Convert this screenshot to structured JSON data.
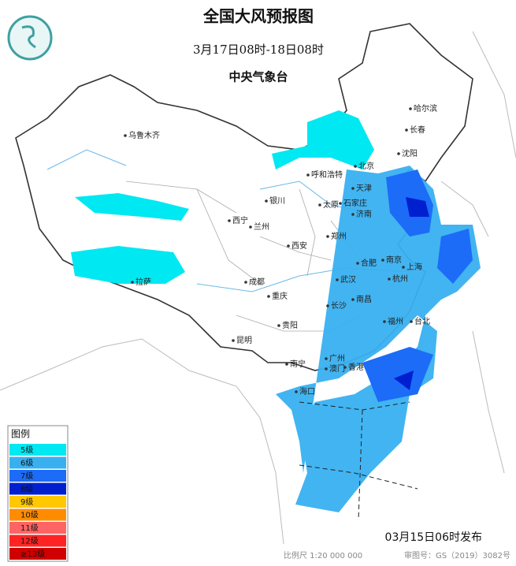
{
  "header": {
    "title": "全国大风预报图",
    "period": "3月17日08时-18日08时",
    "issuer": "中央气象台"
  },
  "cities": [
    "乌鲁木齐",
    "哈尔滨",
    "长春",
    "沈阳",
    "北京",
    "天津",
    "呼和浩特",
    "银川",
    "石家庄",
    "太原",
    "济南",
    "西宁",
    "兰州",
    "郑州",
    "西安",
    "合肥",
    "南京",
    "上海",
    "成都",
    "武汉",
    "杭州",
    "重庆",
    "长沙",
    "南昌",
    "拉萨",
    "贵阳",
    "福州",
    "台北",
    "昆明",
    "广州",
    "南宁",
    "澳门",
    "香港",
    "海口"
  ],
  "legend": {
    "title": "图例",
    "items": [
      {
        "label": "5级",
        "color": "#00e8f2"
      },
      {
        "label": "6级",
        "color": "#38b0f0"
      },
      {
        "label": "7级",
        "color": "#1c6cf8"
      },
      {
        "label": "8级",
        "color": "#0020d0"
      },
      {
        "label": "9级",
        "color": "#ffc800"
      },
      {
        "label": "10级",
        "color": "#ff8c00"
      },
      {
        "label": "11级",
        "color": "#ff6464"
      },
      {
        "label": "12级",
        "color": "#ff2424"
      },
      {
        "label": "≥13级",
        "color": "#d00000"
      }
    ]
  },
  "footer": {
    "issued": "03月15日06时发布",
    "scale": "比例尺 1:20 000 000",
    "map_number": "审图号：GS（2019）3082号"
  }
}
